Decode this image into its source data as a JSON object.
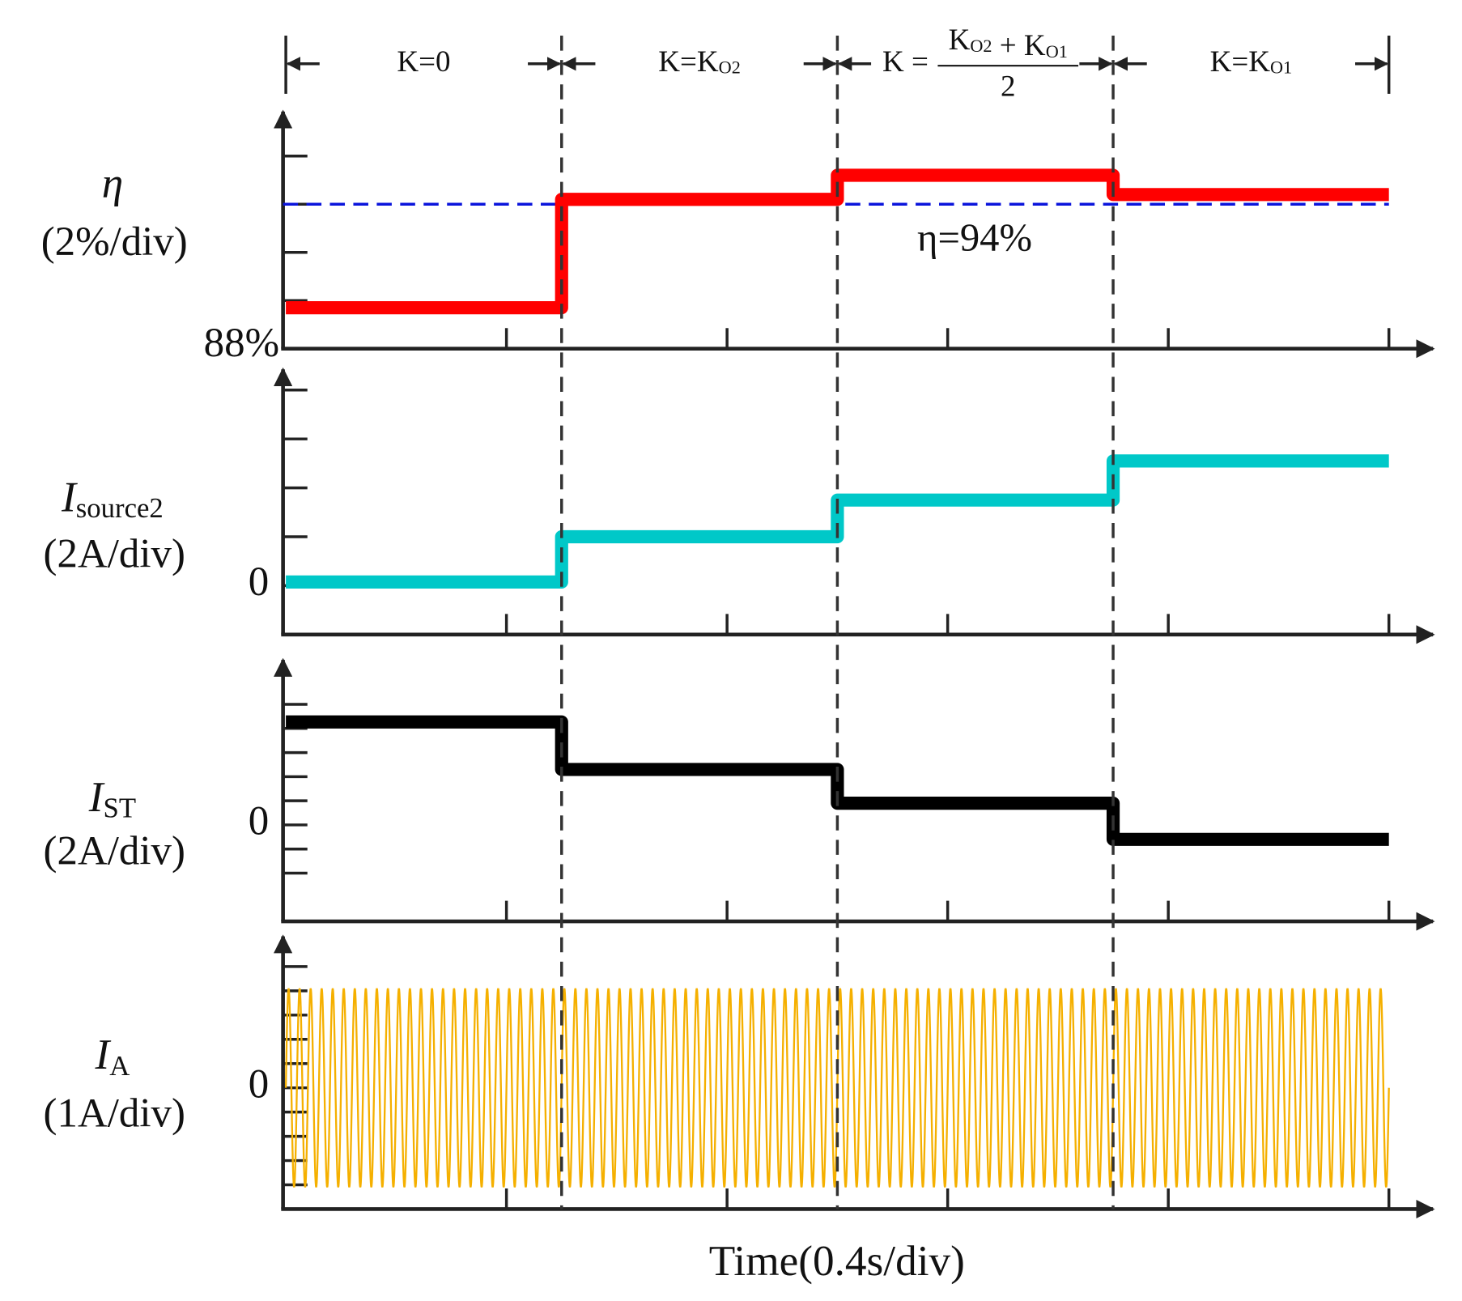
{
  "time_axis": {
    "xlabel": "Time(0.4s/div)",
    "xlim": [
      0,
      2.08
    ],
    "xticks": [
      0.4,
      0.8,
      1.2,
      1.6,
      2.0
    ],
    "boundaries": [
      0,
      0.5,
      1.0,
      1.5,
      2.0
    ]
  },
  "regions": [
    {
      "lead": [
        {
          "text": "K=0"
        }
      ]
    },
    {
      "lead": [
        {
          "text": "K=K",
          "sub": "O2"
        }
      ]
    },
    {
      "lead": [
        {
          "text": "K ="
        }
      ],
      "numerator": [
        {
          "text": "K",
          "sub": "O2"
        },
        {
          "text": " + K",
          "sub": "O1"
        }
      ],
      "denominator": "2"
    },
    {
      "lead": [
        {
          "text": "K=K",
          "sub": "O1"
        }
      ]
    }
  ],
  "chart_data": [
    {
      "type": "line",
      "ylabel": {
        "symbol": "η",
        "unit": "(2%/div)"
      },
      "ylim": [
        88,
        98
      ],
      "yticks": [
        90,
        92,
        94,
        96
      ],
      "labeled_ticks": [
        {
          "value": 88,
          "label": "88%"
        }
      ],
      "reference": {
        "value": 94,
        "label": "η=94%",
        "color": "#0a14dc"
      },
      "series": [
        {
          "color": "#ff0000",
          "x": [
            0,
            0.5,
            0.5,
            1.0,
            1.0,
            1.5,
            1.5,
            2.0
          ],
          "values": [
            89.7,
            89.7,
            94.2,
            94.2,
            95.2,
            95.2,
            94.4,
            94.4
          ]
        }
      ]
    },
    {
      "type": "line",
      "ylabel": {
        "symbol": "I",
        "sub": "source2",
        "unit": "(2A/div)"
      },
      "ylim": [
        -2,
        9
      ],
      "yticks": [
        0,
        2,
        4,
        6,
        8
      ],
      "labeled_ticks": [
        0
      ],
      "series": [
        {
          "color": "#00c8c8",
          "x": [
            0,
            0.5,
            0.5,
            1.0,
            1.0,
            1.5,
            1.5,
            2.0
          ],
          "values": [
            0.15,
            0.15,
            2.0,
            2.0,
            3.5,
            3.5,
            5.1,
            5.1
          ]
        }
      ]
    },
    {
      "type": "line",
      "ylabel": {
        "symbol": "I",
        "sub": "ST",
        "unit": "(2A/div)"
      },
      "ylim": [
        -4,
        7
      ],
      "yticks": [
        -2,
        -1,
        0,
        1,
        2,
        3,
        4,
        5
      ],
      "labeled_ticks": [
        0
      ],
      "series": [
        {
          "color": "#000000",
          "x": [
            0,
            0.5,
            0.5,
            1.0,
            1.0,
            1.5,
            1.5,
            2.0
          ],
          "values": [
            4.27,
            4.27,
            2.3,
            2.3,
            0.9,
            0.9,
            -0.6,
            -0.6
          ]
        }
      ]
    },
    {
      "type": "sine",
      "ylabel": {
        "symbol": "I",
        "sub": "A",
        "unit": "(1A/div)"
      },
      "ylim": [
        -2.5,
        3.2
      ],
      "yticks": [
        -2,
        -1.5,
        -1,
        -0.5,
        0,
        0.5,
        1,
        1.5,
        2,
        2.5
      ],
      "labeled_ticks": [
        0
      ],
      "series": [
        {
          "color": "#f5b000",
          "amplitude": 2.05,
          "frequency": 50,
          "span": [
            0,
            2.0
          ]
        }
      ]
    }
  ]
}
